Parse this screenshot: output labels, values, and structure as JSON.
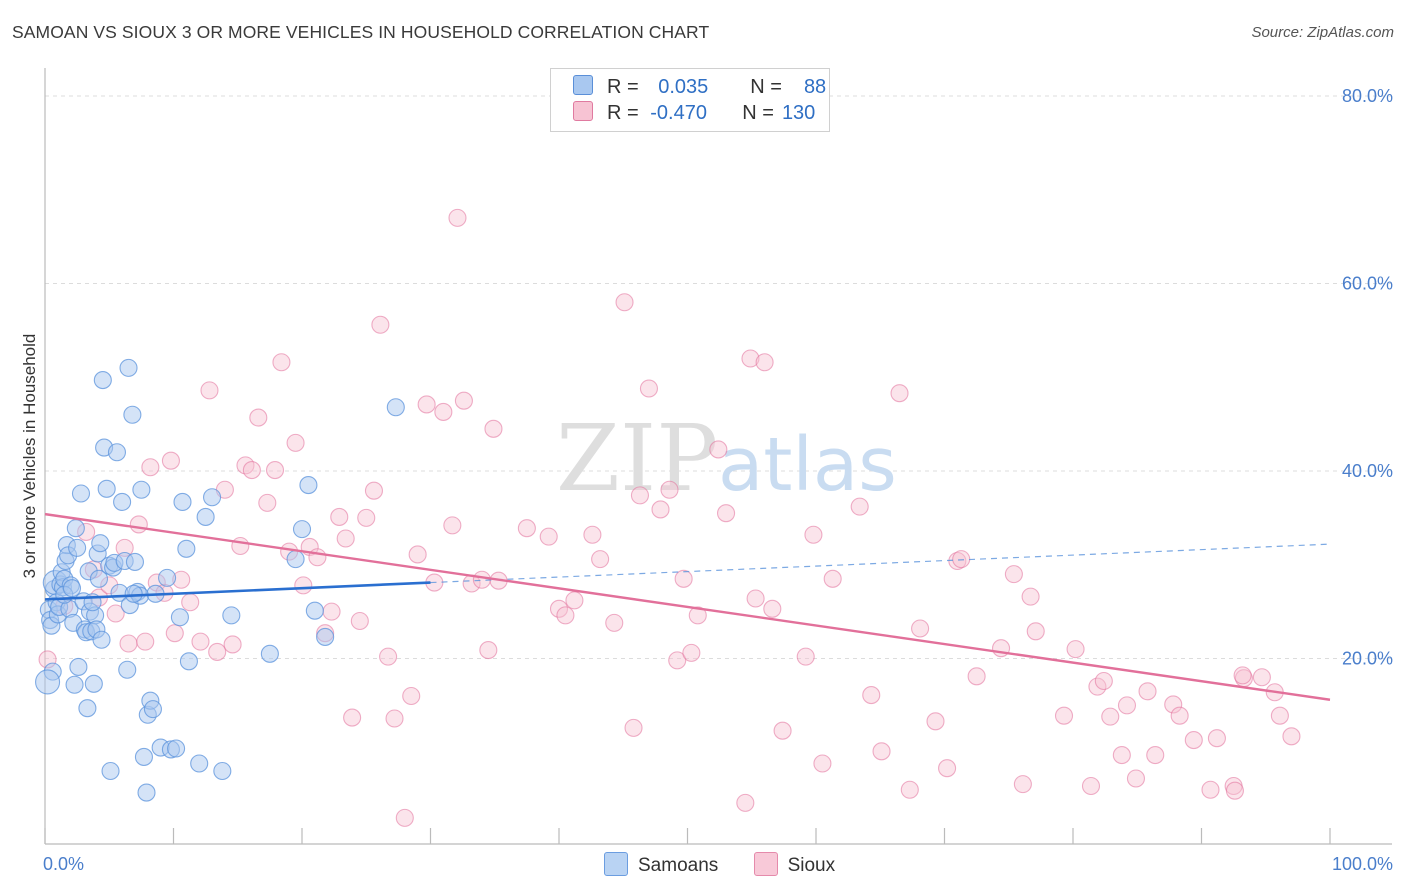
{
  "title": "SAMOAN VS SIOUX 3 OR MORE VEHICLES IN HOUSEHOLD CORRELATION CHART",
  "source": "Source: ZipAtlas.com",
  "watermark": {
    "zip": "ZIP",
    "atlas": "atlas"
  },
  "legend": {
    "rows": [
      {
        "r_label": "R =",
        "r_value": "0.035",
        "n_label": "N =",
        "n_value": "88",
        "color": "#a9c8f0",
        "border": "#5a8fd8"
      },
      {
        "r_label": "R =",
        "r_value": "-0.470",
        "n_label": "N =",
        "n_value": "130",
        "color": "#f7c3d3",
        "border": "#e07aa0"
      }
    ]
  },
  "bottom_legend": [
    {
      "label": "Samoans",
      "color": "#b9d3f3",
      "border": "#6b9de0"
    },
    {
      "label": "Sioux",
      "color": "#f8c9d8",
      "border": "#e58aab"
    }
  ],
  "chart_data": {
    "type": "scatter",
    "title": "SAMOAN VS SIOUX 3 OR MORE VEHICLES IN HOUSEHOLD CORRELATION CHART",
    "xlabel": "",
    "ylabel": "3 or more Vehicles in Household",
    "xlim": [
      0,
      100
    ],
    "ylim": [
      0,
      85
    ],
    "x_tick_labels": [
      "0.0%",
      "100.0%"
    ],
    "y_ticks": [
      20,
      40,
      60,
      80
    ],
    "y_tick_labels": [
      "20.0%",
      "40.0%",
      "60.0%",
      "80.0%"
    ],
    "grid": true,
    "legend_position": "top-center",
    "series": [
      {
        "name": "Samoans",
        "color": "#5b93dc",
        "fill": "#a9c8f0",
        "trend": {
          "x": [
            0,
            30
          ],
          "y": [
            26.3,
            28.1
          ],
          "dashed_extension_to": [
            100,
            32.2
          ]
        },
        "points": [
          [
            0.3,
            25.2
          ],
          [
            0.4,
            24.1
          ],
          [
            0.5,
            23.5
          ],
          [
            0.6,
            18.6
          ],
          [
            0.7,
            27.4
          ],
          [
            0.8,
            28.1
          ],
          [
            0.9,
            26.0
          ],
          [
            1.0,
            24.7
          ],
          [
            1.1,
            25.5
          ],
          [
            1.2,
            27.9
          ],
          [
            1.3,
            29.2
          ],
          [
            1.4,
            27.6
          ],
          [
            1.5,
            28.5
          ],
          [
            1.6,
            30.4
          ],
          [
            1.7,
            32.1
          ],
          [
            1.8,
            31.0
          ],
          [
            1.9,
            25.3
          ],
          [
            2.0,
            27.8
          ],
          [
            2.2,
            23.8
          ],
          [
            2.3,
            17.2
          ],
          [
            2.4,
            33.9
          ],
          [
            2.5,
            31.8
          ],
          [
            2.6,
            19.1
          ],
          [
            2.8,
            37.6
          ],
          [
            3.0,
            26.1
          ],
          [
            3.1,
            23.1
          ],
          [
            3.2,
            22.8
          ],
          [
            3.3,
            14.7
          ],
          [
            3.4,
            29.3
          ],
          [
            3.5,
            25.0
          ],
          [
            3.6,
            22.9
          ],
          [
            3.8,
            17.3
          ],
          [
            3.9,
            24.6
          ],
          [
            4.0,
            23.1
          ],
          [
            4.1,
            31.2
          ],
          [
            4.2,
            28.5
          ],
          [
            4.3,
            32.3
          ],
          [
            4.4,
            22.0
          ],
          [
            4.5,
            49.7
          ],
          [
            4.6,
            42.5
          ],
          [
            4.8,
            38.1
          ],
          [
            5.0,
            29.9
          ],
          [
            5.1,
            8.0
          ],
          [
            5.3,
            29.7
          ],
          [
            5.4,
            30.2
          ],
          [
            5.6,
            42.0
          ],
          [
            5.8,
            27.0
          ],
          [
            6.0,
            36.7
          ],
          [
            6.2,
            30.4
          ],
          [
            6.4,
            18.8
          ],
          [
            6.5,
            51.0
          ],
          [
            6.6,
            25.7
          ],
          [
            6.8,
            46.0
          ],
          [
            7.0,
            30.3
          ],
          [
            7.2,
            27.1
          ],
          [
            7.4,
            26.7
          ],
          [
            7.5,
            38.0
          ],
          [
            7.7,
            9.5
          ],
          [
            7.9,
            5.7
          ],
          [
            8.0,
            14.0
          ],
          [
            8.2,
            15.5
          ],
          [
            8.4,
            14.6
          ],
          [
            9.0,
            10.5
          ],
          [
            9.5,
            28.6
          ],
          [
            9.8,
            10.3
          ],
          [
            10.2,
            10.4
          ],
          [
            10.5,
            24.4
          ],
          [
            10.7,
            36.7
          ],
          [
            11.0,
            31.7
          ],
          [
            11.2,
            19.7
          ],
          [
            12.0,
            8.8
          ],
          [
            12.5,
            35.1
          ],
          [
            13.0,
            37.2
          ],
          [
            13.8,
            8.0
          ],
          [
            14.5,
            24.6
          ],
          [
            17.5,
            20.5
          ],
          [
            19.5,
            30.6
          ],
          [
            20.0,
            33.8
          ],
          [
            20.5,
            38.5
          ],
          [
            21.0,
            25.1
          ],
          [
            21.8,
            22.3
          ],
          [
            27.3,
            46.8
          ],
          [
            1.5,
            26.8
          ],
          [
            2.1,
            27.5
          ],
          [
            3.7,
            26.0
          ],
          [
            6.9,
            26.9
          ],
          [
            8.6,
            26.9
          ],
          [
            0.2,
            17.5
          ]
        ]
      },
      {
        "name": "Sioux",
        "color": "#e2709a",
        "fill": "#f7c3d3",
        "trend": {
          "x": [
            0,
            100
          ],
          "y": [
            35.4,
            15.6
          ]
        },
        "points": [
          [
            0.2,
            19.9
          ],
          [
            1.5,
            25.6
          ],
          [
            3.2,
            33.5
          ],
          [
            3.8,
            29.5
          ],
          [
            4.2,
            26.5
          ],
          [
            5.0,
            27.8
          ],
          [
            5.5,
            24.8
          ],
          [
            6.2,
            31.8
          ],
          [
            6.5,
            21.6
          ],
          [
            7.3,
            34.3
          ],
          [
            7.8,
            21.8
          ],
          [
            8.2,
            40.4
          ],
          [
            8.7,
            28.1
          ],
          [
            9.3,
            27.0
          ],
          [
            9.8,
            41.1
          ],
          [
            10.1,
            22.7
          ],
          [
            10.6,
            28.4
          ],
          [
            11.3,
            26.0
          ],
          [
            12.1,
            21.8
          ],
          [
            12.8,
            48.6
          ],
          [
            13.4,
            20.7
          ],
          [
            14.0,
            38.0
          ],
          [
            14.6,
            21.5
          ],
          [
            15.2,
            32.0
          ],
          [
            15.6,
            40.6
          ],
          [
            16.1,
            40.1
          ],
          [
            16.6,
            45.7
          ],
          [
            17.3,
            36.6
          ],
          [
            17.9,
            40.1
          ],
          [
            18.4,
            51.6
          ],
          [
            19.0,
            31.4
          ],
          [
            19.5,
            43.0
          ],
          [
            20.1,
            27.8
          ],
          [
            20.6,
            31.9
          ],
          [
            21.2,
            30.8
          ],
          [
            21.8,
            22.7
          ],
          [
            22.3,
            25.0
          ],
          [
            22.9,
            35.1
          ],
          [
            23.4,
            32.8
          ],
          [
            23.9,
            13.7
          ],
          [
            24.5,
            24.0
          ],
          [
            25.0,
            35.0
          ],
          [
            25.6,
            37.9
          ],
          [
            26.1,
            55.6
          ],
          [
            26.7,
            20.2
          ],
          [
            27.2,
            13.6
          ],
          [
            28.0,
            3.0
          ],
          [
            28.5,
            16.0
          ],
          [
            29.0,
            31.1
          ],
          [
            29.7,
            47.1
          ],
          [
            30.3,
            28.1
          ],
          [
            31.0,
            46.3
          ],
          [
            31.7,
            34.2
          ],
          [
            32.1,
            67.0
          ],
          [
            32.6,
            47.5
          ],
          [
            33.2,
            28.0
          ],
          [
            34.0,
            28.4
          ],
          [
            34.5,
            20.9
          ],
          [
            34.9,
            44.5
          ],
          [
            35.3,
            28.3
          ],
          [
            37.5,
            33.9
          ],
          [
            39.2,
            33.0
          ],
          [
            40.0,
            25.3
          ],
          [
            40.5,
            24.6
          ],
          [
            41.2,
            26.2
          ],
          [
            42.6,
            33.2
          ],
          [
            43.2,
            30.6
          ],
          [
            44.3,
            23.8
          ],
          [
            45.1,
            58.0
          ],
          [
            45.8,
            12.6
          ],
          [
            46.3,
            37.4
          ],
          [
            47.0,
            48.8
          ],
          [
            47.9,
            35.9
          ],
          [
            48.6,
            38.0
          ],
          [
            49.2,
            19.8
          ],
          [
            49.7,
            28.5
          ],
          [
            50.3,
            20.6
          ],
          [
            50.8,
            24.6
          ],
          [
            52.4,
            42.3
          ],
          [
            53.0,
            35.5
          ],
          [
            54.5,
            4.6
          ],
          [
            54.9,
            52.0
          ],
          [
            55.3,
            26.4
          ],
          [
            56.0,
            51.6
          ],
          [
            56.6,
            25.3
          ],
          [
            57.4,
            12.3
          ],
          [
            59.2,
            20.2
          ],
          [
            59.8,
            33.2
          ],
          [
            60.5,
            8.8
          ],
          [
            61.3,
            28.5
          ],
          [
            63.4,
            36.2
          ],
          [
            64.3,
            16.1
          ],
          [
            65.1,
            10.1
          ],
          [
            66.5,
            48.3
          ],
          [
            67.3,
            6.0
          ],
          [
            68.1,
            23.2
          ],
          [
            69.3,
            13.3
          ],
          [
            70.2,
            8.3
          ],
          [
            71.0,
            30.4
          ],
          [
            71.3,
            30.6
          ],
          [
            72.5,
            18.1
          ],
          [
            74.4,
            21.1
          ],
          [
            75.4,
            29.0
          ],
          [
            76.1,
            6.6
          ],
          [
            76.7,
            26.6
          ],
          [
            77.1,
            22.9
          ],
          [
            79.3,
            13.9
          ],
          [
            80.2,
            21.0
          ],
          [
            81.4,
            6.4
          ],
          [
            81.9,
            17.0
          ],
          [
            82.4,
            17.6
          ],
          [
            82.9,
            13.8
          ],
          [
            83.8,
            9.7
          ],
          [
            84.2,
            15.0
          ],
          [
            84.9,
            7.2
          ],
          [
            85.8,
            16.5
          ],
          [
            86.4,
            9.7
          ],
          [
            87.8,
            15.1
          ],
          [
            88.3,
            13.9
          ],
          [
            89.4,
            11.3
          ],
          [
            90.7,
            6.0
          ],
          [
            91.2,
            11.5
          ],
          [
            92.5,
            6.4
          ],
          [
            93.3,
            17.9
          ],
          [
            94.7,
            18.0
          ],
          [
            93.2,
            18.2
          ],
          [
            95.7,
            16.4
          ],
          [
            96.1,
            13.9
          ],
          [
            97.0,
            11.7
          ],
          [
            92.6,
            5.9
          ]
        ]
      }
    ]
  }
}
